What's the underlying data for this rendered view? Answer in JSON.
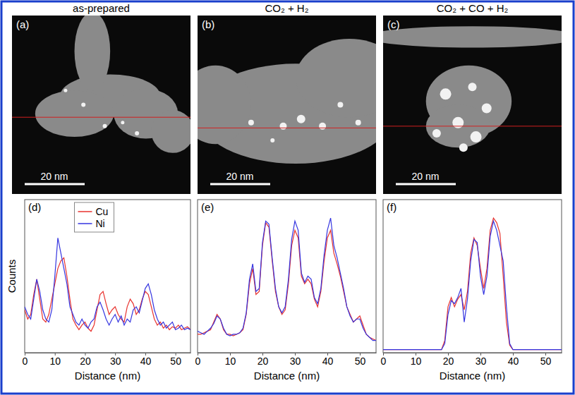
{
  "images": [
    {
      "label": "(a)",
      "title": "as-prepared",
      "scale_bar": "20 nm"
    },
    {
      "label": "(b)",
      "title": "CO₂ + H₂",
      "scale_bar": "20 nm"
    },
    {
      "label": "(c)",
      "title": "CO₂ + CO + H₂",
      "scale_bar": "20 nm"
    }
  ],
  "chart_data": [
    {
      "type": "line",
      "label": "(d)",
      "xlabel": "Distance (nm)",
      "ylabel": "Counts",
      "xlim": [
        0,
        55
      ],
      "xticks": [
        0,
        10,
        20,
        30,
        40,
        50
      ],
      "ylim": [
        0,
        100
      ],
      "tick_labels": "x",
      "legend": "top",
      "x": [
        0,
        1,
        2,
        3,
        4,
        5,
        6,
        7,
        8,
        9,
        10,
        11,
        12,
        13,
        14,
        15,
        16,
        17,
        18,
        19,
        20,
        21,
        22,
        23,
        24,
        25,
        26,
        27,
        28,
        29,
        30,
        31,
        32,
        33,
        34,
        35,
        36,
        37,
        38,
        39,
        40,
        41,
        42,
        43,
        44,
        45,
        46,
        47,
        48,
        49,
        50,
        51,
        52,
        53,
        54,
        55
      ],
      "series": [
        {
          "name": "Cu",
          "color": "#e8322e",
          "values": [
            28,
            22,
            25,
            38,
            48,
            35,
            22,
            20,
            25,
            35,
            45,
            55,
            60,
            62,
            50,
            35,
            22,
            18,
            15,
            18,
            20,
            16,
            14,
            18,
            28,
            38,
            40,
            32,
            25,
            28,
            30,
            25,
            22,
            20,
            30,
            35,
            32,
            25,
            28,
            35,
            40,
            38,
            30,
            22,
            18,
            20,
            16,
            18,
            15,
            17,
            16,
            18,
            15,
            16,
            17,
            15
          ]
        },
        {
          "name": "Ni",
          "color": "#3535e0",
          "values": [
            30,
            25,
            22,
            35,
            48,
            40,
            28,
            22,
            20,
            28,
            50,
            75,
            65,
            55,
            45,
            30,
            25,
            20,
            18,
            22,
            18,
            16,
            20,
            22,
            30,
            33,
            28,
            22,
            18,
            22,
            25,
            20,
            24,
            18,
            22,
            20,
            28,
            30,
            26,
            34,
            42,
            45,
            38,
            28,
            22,
            18,
            20,
            16,
            18,
            20,
            15,
            16,
            18,
            15,
            16,
            15
          ]
        }
      ]
    },
    {
      "type": "line",
      "label": "(e)",
      "xlabel": "Distance (nm)",
      "xlim": [
        0,
        55
      ],
      "xticks": [
        0,
        10,
        20,
        30,
        40,
        50
      ],
      "ylim": [
        0,
        100
      ],
      "tick_labels": "x",
      "x": [
        0,
        1,
        2,
        3,
        4,
        5,
        6,
        7,
        8,
        9,
        10,
        11,
        12,
        13,
        14,
        15,
        16,
        17,
        18,
        19,
        20,
        21,
        22,
        23,
        24,
        25,
        26,
        27,
        28,
        29,
        30,
        31,
        32,
        33,
        34,
        35,
        36,
        37,
        38,
        39,
        40,
        41,
        42,
        43,
        44,
        45,
        46,
        47,
        48,
        49,
        50,
        51,
        52,
        53,
        54,
        55
      ],
      "series": [
        {
          "name": "Cu",
          "color": "#e8322e",
          "values": [
            12,
            12,
            13,
            14,
            15,
            20,
            25,
            22,
            15,
            12,
            12,
            11,
            12,
            13,
            15,
            25,
            45,
            55,
            38,
            40,
            70,
            85,
            82,
            60,
            40,
            30,
            25,
            28,
            45,
            70,
            80,
            75,
            50,
            45,
            48,
            45,
            35,
            30,
            40,
            60,
            75,
            80,
            65,
            58,
            50,
            40,
            30,
            25,
            20,
            22,
            24,
            18,
            12,
            10,
            9,
            8
          ]
        },
        {
          "name": "Ni",
          "color": "#3535e0",
          "values": [
            14,
            13,
            12,
            14,
            16,
            19,
            24,
            22,
            16,
            12,
            11,
            12,
            12,
            13,
            16,
            26,
            48,
            58,
            40,
            42,
            72,
            86,
            84,
            62,
            42,
            30,
            26,
            30,
            48,
            74,
            86,
            80,
            52,
            46,
            50,
            48,
            36,
            32,
            42,
            64,
            80,
            88,
            70,
            62,
            52,
            42,
            30,
            24,
            20,
            22,
            22,
            16,
            12,
            10,
            8,
            8
          ]
        }
      ]
    },
    {
      "type": "line",
      "label": "(f)",
      "xlabel": "Distance (nm)",
      "xlim": [
        0,
        55
      ],
      "xticks": [
        0,
        10,
        20,
        30,
        40,
        50
      ],
      "ylim": [
        0,
        100
      ],
      "tick_labels": "x",
      "x": [
        0,
        1,
        2,
        3,
        4,
        5,
        6,
        7,
        8,
        9,
        10,
        11,
        12,
        13,
        14,
        15,
        16,
        17,
        18,
        19,
        20,
        21,
        22,
        23,
        24,
        25,
        26,
        27,
        28,
        29,
        30,
        31,
        32,
        33,
        34,
        35,
        36,
        37,
        38,
        39,
        40,
        41,
        42,
        43,
        44,
        45,
        46,
        47,
        48,
        49,
        50,
        51,
        52,
        53,
        54,
        55
      ],
      "series": [
        {
          "name": "Cu",
          "color": "#e8322e",
          "values": [
            2,
            2,
            2,
            2,
            2,
            2,
            2,
            2,
            2,
            2,
            2,
            2,
            2,
            2,
            2,
            2,
            2,
            2,
            2,
            8,
            30,
            36,
            30,
            35,
            38,
            28,
            40,
            65,
            75,
            70,
            55,
            42,
            55,
            80,
            88,
            85,
            78,
            50,
            20,
            5,
            2,
            2,
            2,
            2,
            2,
            2,
            2,
            2,
            2,
            2,
            2,
            2,
            2,
            2,
            2,
            2
          ]
        },
        {
          "name": "Ni",
          "color": "#3535e0",
          "values": [
            2,
            2,
            2,
            2,
            2,
            2,
            2,
            2,
            2,
            2,
            2,
            2,
            2,
            2,
            2,
            2,
            2,
            2,
            2,
            6,
            25,
            34,
            32,
            36,
            42,
            20,
            35,
            60,
            74,
            72,
            50,
            38,
            50,
            76,
            86,
            80,
            70,
            60,
            30,
            6,
            2,
            2,
            2,
            2,
            2,
            2,
            2,
            2,
            2,
            2,
            2,
            2,
            2,
            2,
            2,
            2
          ]
        }
      ]
    }
  ]
}
